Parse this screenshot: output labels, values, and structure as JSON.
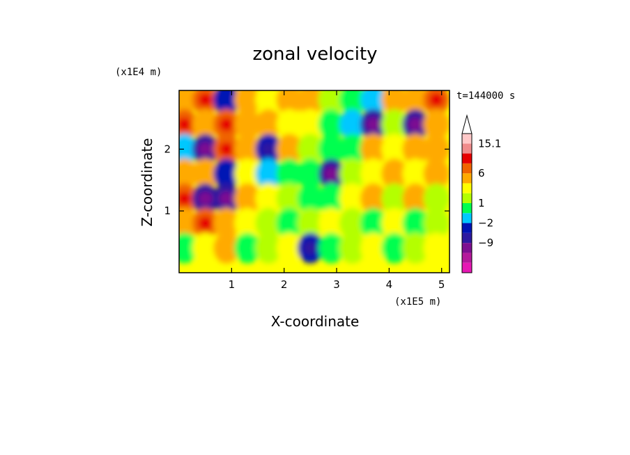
{
  "chart_data": {
    "type": "heatmap",
    "title": "zonal velocity",
    "xlabel": "X-coordinate",
    "ylabel": "Z-coordinate",
    "x_unit": "(x1E5 m)",
    "y_unit": "(x1E4 m)",
    "time_label": "t=144000 s",
    "xlim": [
      0,
      5.15
    ],
    "ylim": [
      0,
      2.95
    ],
    "x_ticks": [
      1,
      2,
      3,
      4,
      5
    ],
    "y_ticks": [
      1,
      2
    ],
    "colorbar": {
      "levels": [
        -15.1,
        -12,
        -9,
        -6,
        -2,
        -1,
        1,
        2,
        3,
        6,
        9,
        12,
        15.1
      ],
      "labels": [
        {
          "text": "15.1",
          "value": 15.1
        },
        {
          "text": "6",
          "value": 6
        },
        {
          "text": "1",
          "value": 1
        },
        {
          "text": "−2",
          "value": -2
        },
        {
          "text": "−9",
          "value": -9
        }
      ],
      "colors": [
        "#e619b4",
        "#b4199b",
        "#7d0f91",
        "#2d19a0",
        "#0014b4",
        "#00c8ff",
        "#00ff50",
        "#b4ff00",
        "#ffff00",
        "#ffaa00",
        "#f06400",
        "#e60000",
        "#f08c8c",
        "#ffc8c8"
      ],
      "extend_max": true
    },
    "field": {
      "x": [
        0.1,
        0.5,
        0.9,
        1.3,
        1.7,
        2.1,
        2.5,
        2.9,
        3.3,
        3.7,
        4.1,
        4.5,
        4.9
      ],
      "z": [
        2.8,
        2.4,
        2.0,
        1.6,
        1.2,
        0.8,
        0.4
      ],
      "values": [
        [
          4,
          8,
          -4,
          3,
          2,
          5,
          3,
          1,
          0,
          -2,
          4,
          3,
          6
        ],
        [
          6,
          5,
          8,
          3,
          4,
          2,
          2,
          0,
          -2,
          -8,
          1,
          -7,
          3
        ],
        [
          -2,
          -7,
          6,
          4,
          -6,
          3,
          1,
          -1,
          -1,
          3,
          2,
          4,
          3
        ],
        [
          5,
          3,
          -3,
          2,
          -2,
          -1,
          0,
          -8,
          1,
          2,
          5,
          2,
          4
        ],
        [
          7,
          -9,
          -8,
          3,
          2,
          1,
          -1,
          0,
          2,
          3,
          1,
          3,
          1
        ],
        [
          4,
          6,
          3,
          2,
          1,
          0,
          1,
          2,
          1,
          -1,
          2,
          0,
          1
        ],
        [
          -1,
          2,
          3,
          0,
          1,
          2,
          -6,
          0,
          1,
          2,
          -1,
          1,
          2
        ]
      ]
    }
  }
}
